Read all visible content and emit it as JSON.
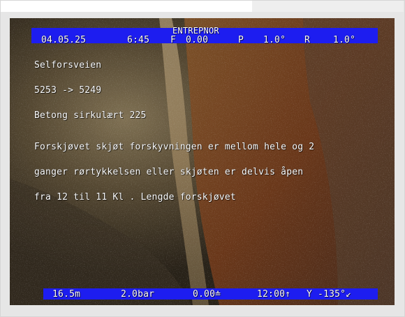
{
  "osd": {
    "title": "ENTREPNOR",
    "date": "04.05.25",
    "time": "6:45",
    "f_label": "F",
    "f_value": "0.00",
    "p_label": "P",
    "p_value": "1.0°",
    "r_label": "R",
    "r_value": "1.0°",
    "location_lines": [
      "Selforsveien",
      "5253 -> 5249",
      "Betong sirkulært 225"
    ],
    "observation_lines": [
      "Forskjøvet skjøt forskyvningen er mellom hele og 2",
      "ganger rørtykkelsen eller skjøten er delvis åpen",
      "fra 12 til 11 Kl . Lengde forskjøvet"
    ],
    "distance": "16.5m",
    "pressure": "2.0bar",
    "value": "0.00≐",
    "clock": "12:00↑",
    "y_value": "Y -135°↙"
  },
  "colors": {
    "osd_bar": "#1d1df0",
    "osd_text": "#ffffff",
    "frame_bg": "#e6e6e6"
  }
}
